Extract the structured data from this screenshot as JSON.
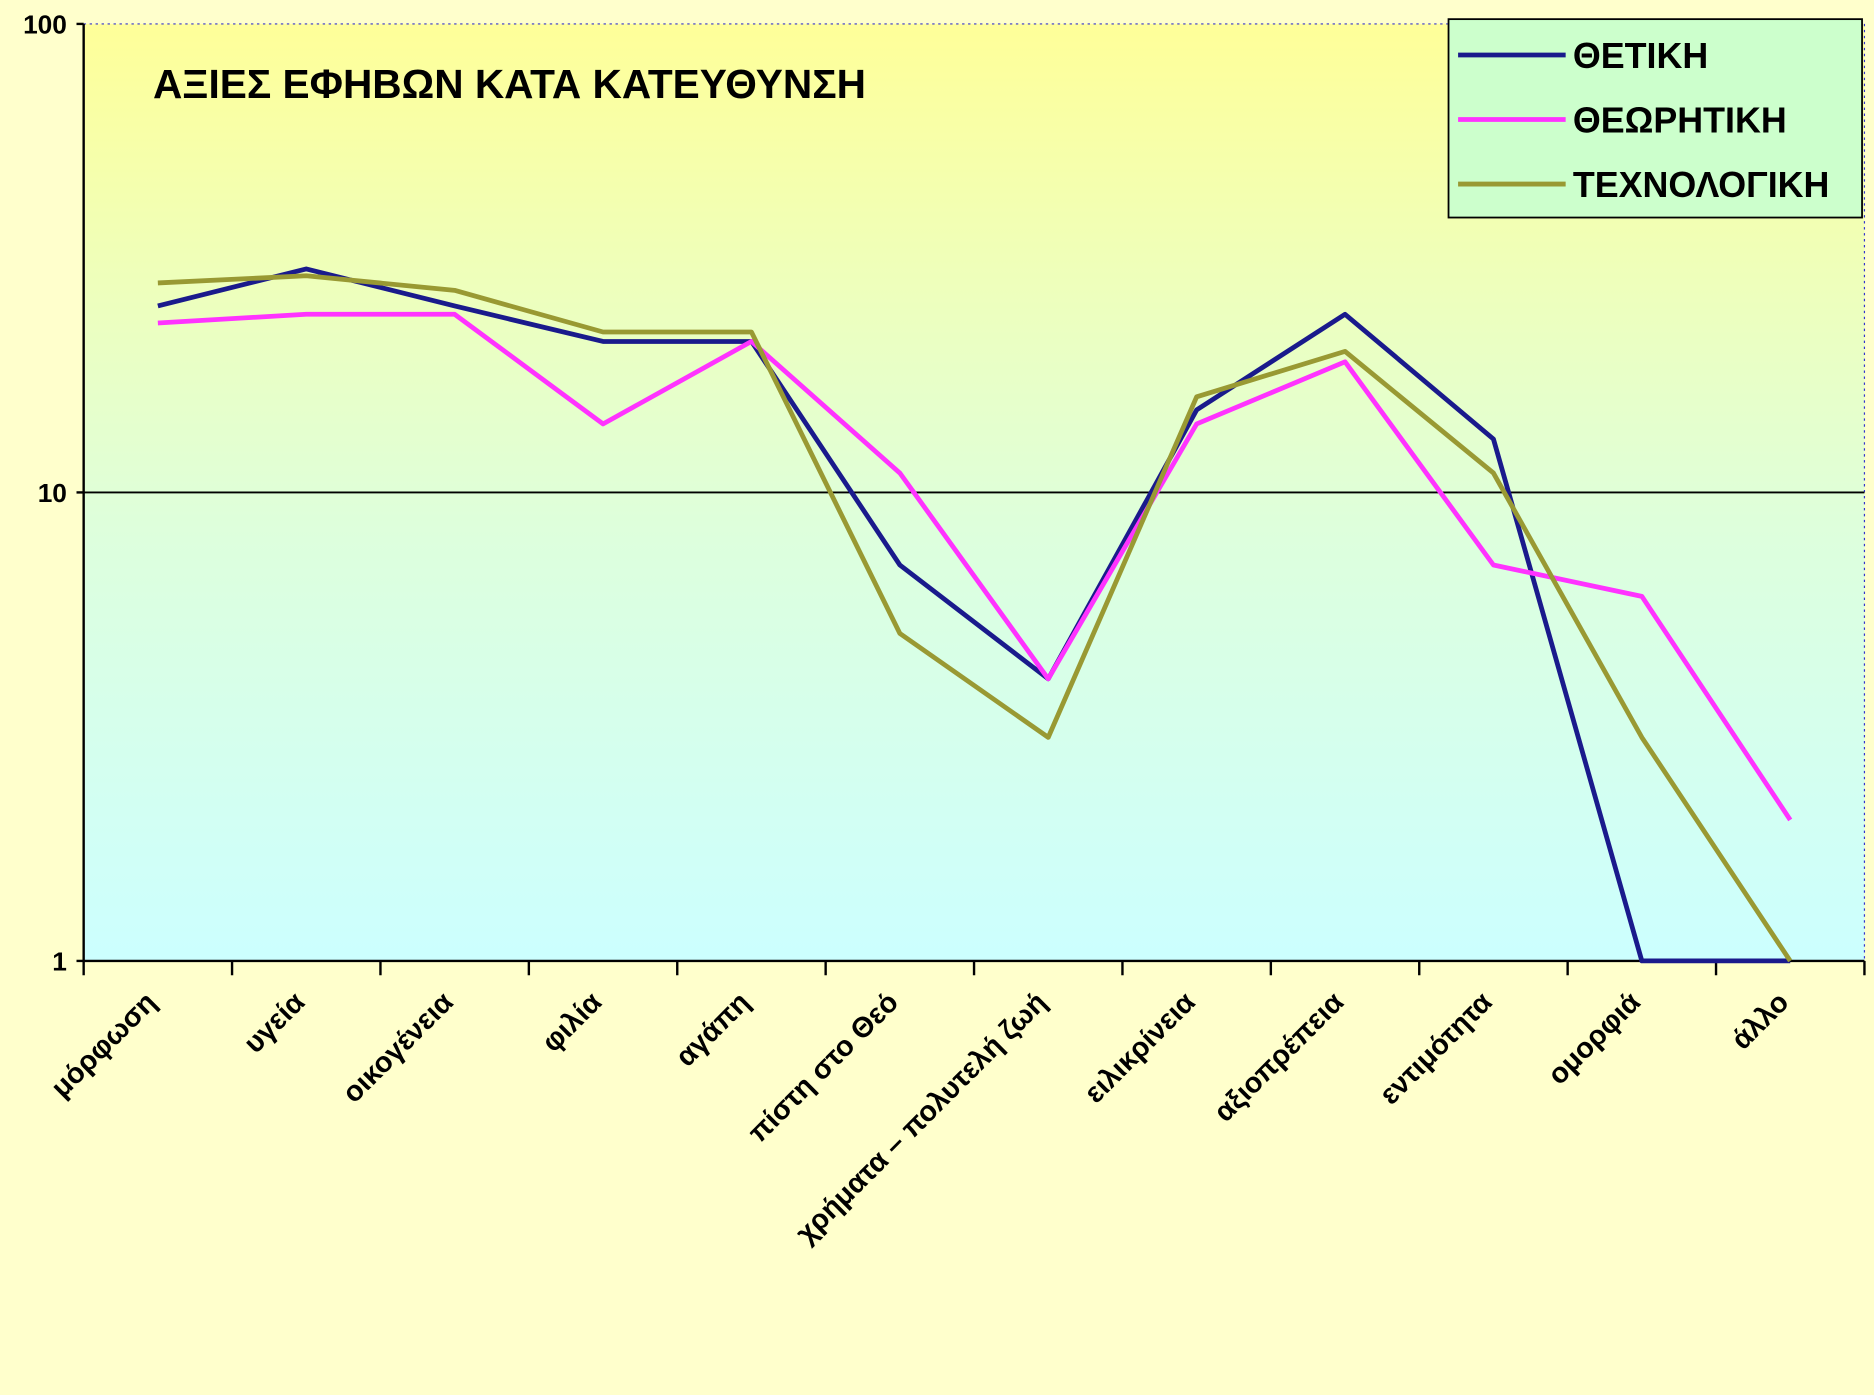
{
  "chart_data": {
    "type": "line",
    "title": "ΑΞΙΕΣ ΕΦΗΒΩΝ ΚΑΤΑ ΚΑΤΕΥΘΥΝΣΗ",
    "categories": [
      "μόρφωση",
      "υγεία",
      "οικογένεια",
      "φιλία",
      "αγάπη",
      "πίστη στο Θεό",
      "χρήματα – πολυτελή ζωή",
      "ειλικρίνεια",
      "αξιοπρέπεια",
      "εντιμότητα",
      "ομορφιά",
      "άλλο"
    ],
    "series": [
      {
        "name": "ΘΕΤΙΚΗ",
        "color": "#1a1a8c",
        "values": [
          25,
          30,
          25,
          21,
          21,
          7,
          4,
          15,
          24,
          13,
          1,
          1
        ]
      },
      {
        "name": "ΘΕΩΡΗΤΙΚΗ",
        "color": "#ff33ff",
        "values": [
          23,
          24,
          24,
          14,
          21,
          11,
          4,
          14,
          19,
          7,
          6,
          2
        ]
      },
      {
        "name": "ΤΕΧΝΟΛΟΓΙΚΗ",
        "color": "#999933",
        "values": [
          28,
          29,
          27,
          22,
          22,
          5,
          3,
          16,
          20,
          11,
          3,
          1
        ]
      }
    ],
    "ylim": [
      1,
      100
    ],
    "yticks": [
      1,
      10,
      100
    ],
    "log_y": true,
    "grid": true,
    "legend": "upper right"
  }
}
